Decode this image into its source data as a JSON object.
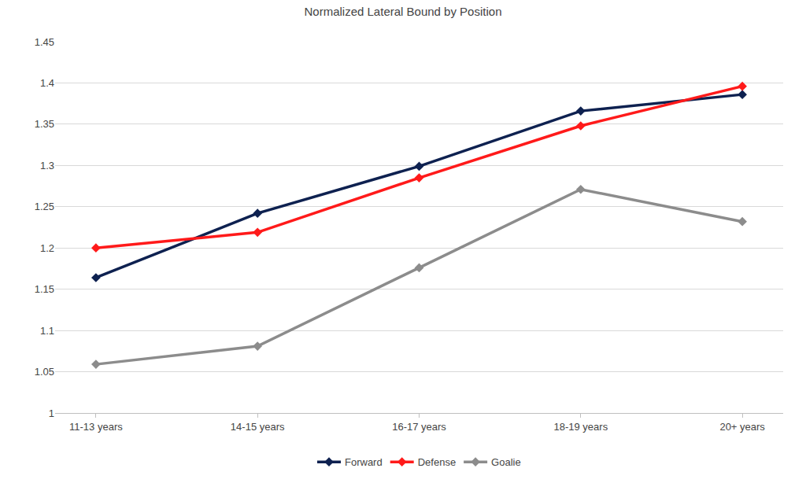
{
  "chart_data": {
    "type": "line",
    "title": "Normalized Lateral Bound by Position",
    "categories": [
      "11-13 years",
      "14-15 years",
      "16-17 years",
      "18-19 years",
      "20+ years"
    ],
    "series": [
      {
        "name": "Forward",
        "color": "#0e2150",
        "marker": "diamond",
        "line_style": "solid",
        "values": [
          1.164,
          1.242,
          1.299,
          1.366,
          1.386
        ]
      },
      {
        "name": "Defense",
        "color": "#ff1a1a",
        "marker": "diamond",
        "line_style": "solid",
        "values": [
          1.2,
          1.219,
          1.285,
          1.348,
          1.396
        ]
      },
      {
        "name": "Goalie",
        "color": "#8c8c8c",
        "marker": "diamond",
        "line_style": "solid",
        "values": [
          1.059,
          1.081,
          1.176,
          1.271,
          1.232
        ]
      }
    ],
    "ylim": [
      1,
      1.45
    ],
    "yticks": [
      1,
      1.05,
      1.1,
      1.15,
      1.2,
      1.25,
      1.3,
      1.35,
      1.4,
      1.45
    ],
    "grid": true,
    "legend": "bottom"
  }
}
